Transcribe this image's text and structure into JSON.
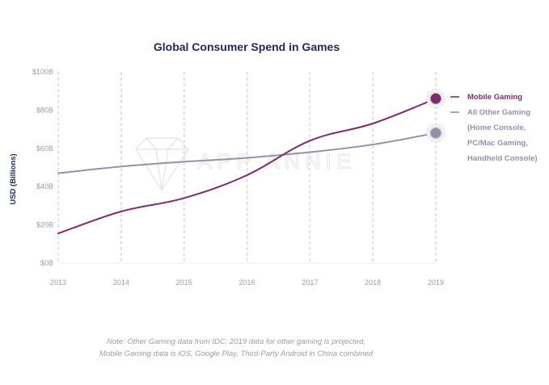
{
  "chart_data": {
    "type": "line",
    "title": "Global Consumer Spend in Games",
    "ylabel": "USD (Billions)",
    "xlabel": "",
    "x": [
      "2013",
      "2014",
      "2015",
      "2016",
      "2017",
      "2018",
      "2019"
    ],
    "ylim": [
      0,
      100
    ],
    "ytick_labels": [
      "$0B",
      "$20B",
      "$40B",
      "$60B",
      "$80B",
      "$100B"
    ],
    "series": [
      {
        "name": "Mobile Gaming",
        "color": "#7b2d6e",
        "values": [
          15.5,
          27,
          34,
          46,
          64,
          73,
          86
        ]
      },
      {
        "name": "All Other Gaming (Home Console, PC/Mac Gaming, Handheld Console)",
        "color": "#9391a9",
        "values": [
          47,
          50.5,
          53,
          55,
          58,
          62,
          68
        ]
      }
    ],
    "legend": {
      "position": "right",
      "mobile_label": "Mobile Gaming",
      "other_label_lines": [
        "All Other Gaming",
        "(Home Console,",
        "PC/Mac Gaming,",
        "Handheld Console)"
      ]
    },
    "grid": "vertical dashed",
    "watermark": "APP ANNIE",
    "note_lines": [
      "Note: Other Gaming data from IDC; 2019 data for other gaming is projected,",
      "Mobile Gaming data is iOS, Google Play, Third-Party Android in China combined"
    ]
  }
}
